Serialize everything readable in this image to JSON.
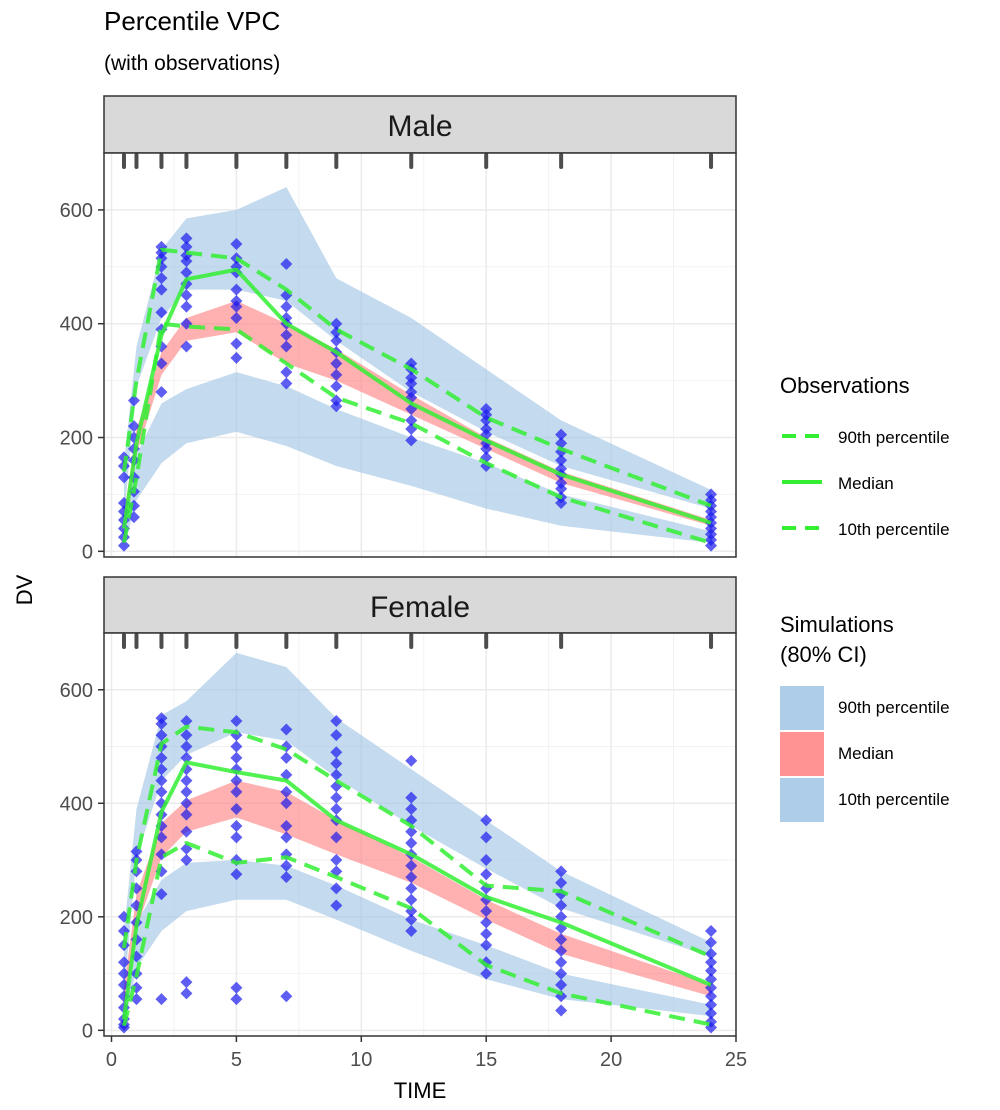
{
  "title": "Percentile VPC",
  "subtitle": "(with observations)",
  "chart_data": {
    "type": "line",
    "xlabel": "TIME",
    "ylabel": "DV",
    "xlim": [
      -0.3,
      25
    ],
    "ylim": [
      -10,
      700
    ],
    "x_ticks": [
      0,
      5,
      10,
      15,
      20,
      25
    ],
    "y_ticks": [
      0,
      200,
      400,
      600
    ],
    "grid": true,
    "bin_marks": [
      0.5,
      1,
      2,
      3,
      5,
      7,
      9,
      12,
      15,
      18,
      24
    ],
    "colors": {
      "observed_line": "#33ee33",
      "points": "#1a1aee",
      "median_band": "#ff8080",
      "pct_band": "#9fc4e4",
      "strip_bg": "#d9d9d9"
    },
    "legend": {
      "placement": "right",
      "observations": {
        "title": "Observations",
        "items": [
          {
            "label": "90th percentile",
            "style": "dashed"
          },
          {
            "label": "Median",
            "style": "solid"
          },
          {
            "label": "10th percentile",
            "style": "dashed"
          }
        ]
      },
      "simulations": {
        "title_line1": "Simulations",
        "title_line2": "(80% CI)",
        "items": [
          {
            "label": "90th percentile",
            "color": "#9fc4e4"
          },
          {
            "label": "Median",
            "color": "#ff8080"
          },
          {
            "label": "10th percentile",
            "color": "#9fc4e4"
          }
        ]
      }
    },
    "panels": [
      {
        "label": "Male",
        "x": [
          0.5,
          1,
          2,
          3,
          5,
          7,
          9,
          12,
          15,
          18,
          24
        ],
        "obs_p90": [
          140,
          300,
          530,
          525,
          515,
          460,
          390,
          320,
          235,
          180,
          80
        ],
        "obs_median": [
          40,
          190,
          380,
          478,
          495,
          400,
          350,
          260,
          195,
          135,
          50
        ],
        "obs_p10": [
          15,
          130,
          400,
          395,
          390,
          330,
          270,
          225,
          155,
          95,
          15
        ],
        "sim_p90_lo": [
          60,
          290,
          410,
          460,
          460,
          440,
          370,
          280,
          210,
          150,
          75
        ],
        "sim_p90_hi": [
          155,
          360,
          530,
          585,
          600,
          640,
          480,
          410,
          320,
          230,
          108
        ],
        "sim_med_lo": [
          35,
          170,
          310,
          370,
          385,
          330,
          300,
          240,
          180,
          120,
          45
        ],
        "sim_med_hi": [
          65,
          215,
          350,
          410,
          440,
          400,
          355,
          275,
          200,
          140,
          55
        ],
        "sim_p10_lo": [
          5,
          90,
          155,
          190,
          210,
          185,
          150,
          115,
          75,
          45,
          15
        ],
        "sim_p10_hi": [
          45,
          170,
          260,
          285,
          315,
          290,
          250,
          200,
          155,
          100,
          35
        ],
        "points": [
          [
            0.5,
            [
              10,
              25,
              40,
              55,
              70,
              85,
              130,
              150,
              165
            ]
          ],
          [
            0.9,
            [
              60,
              80,
              105,
              130,
              160,
              180,
              200,
              220,
              265
            ]
          ],
          [
            2,
            [
              280,
              330,
              360,
              390,
              420,
              460,
              480,
              500,
              515,
              525,
              535
            ]
          ],
          [
            3,
            [
              360,
              400,
              430,
              450,
              470,
              490,
              510,
              520,
              535,
              550
            ]
          ],
          [
            5,
            [
              340,
              365,
              410,
              430,
              440,
              460,
              490,
              500,
              515,
              540
            ]
          ],
          [
            7,
            [
              295,
              315,
              360,
              380,
              400,
              410,
              430,
              450,
              505
            ]
          ],
          [
            9,
            [
              255,
              265,
              290,
              310,
              330,
              350,
              370,
              385,
              400
            ]
          ],
          [
            12,
            [
              195,
              215,
              230,
              250,
              270,
              280,
              295,
              305,
              320,
              330
            ]
          ],
          [
            15,
            [
              150,
              165,
              180,
              190,
              205,
              215,
              230,
              240,
              250
            ]
          ],
          [
            18,
            [
              85,
              95,
              110,
              120,
              135,
              145,
              160,
              175,
              190,
              205
            ]
          ],
          [
            24,
            [
              10,
              20,
              30,
              40,
              50,
              60,
              70,
              80,
              90,
              100
            ]
          ]
        ]
      },
      {
        "label": "Female",
        "x": [
          0.5,
          1,
          2,
          3,
          5,
          7,
          9,
          12,
          15,
          18,
          24
        ],
        "obs_p90": [
          145,
          300,
          505,
          535,
          525,
          495,
          440,
          360,
          255,
          245,
          130
        ],
        "obs_median": [
          20,
          185,
          385,
          472,
          455,
          440,
          370,
          310,
          235,
          190,
          80
        ],
        "obs_p10": [
          8,
          95,
          305,
          330,
          295,
          305,
          270,
          215,
          115,
          65,
          10
        ],
        "sim_p90_lo": [
          65,
          305,
          440,
          485,
          525,
          510,
          445,
          360,
          285,
          215,
          130
        ],
        "sim_p90_hi": [
          175,
          390,
          555,
          580,
          665,
          640,
          550,
          460,
          370,
          280,
          155
        ],
        "sim_med_lo": [
          30,
          180,
          305,
          350,
          375,
          345,
          310,
          260,
          195,
          135,
          60
        ],
        "sim_med_hi": [
          75,
          240,
          365,
          405,
          440,
          420,
          370,
          305,
          230,
          170,
          80
        ],
        "sim_p10_lo": [
          5,
          110,
          175,
          210,
          230,
          230,
          195,
          140,
          90,
          55,
          25
        ],
        "sim_p10_hi": [
          50,
          190,
          265,
          295,
          300,
          290,
          255,
          195,
          150,
          100,
          45
        ],
        "points": [
          [
            0.5,
            [
              5,
              10,
              20,
              40,
              60,
              80,
              100,
              120,
              150,
              175,
              200
            ]
          ],
          [
            1,
            [
              55,
              75,
              100,
              130,
              160,
              190,
              220,
              250,
              280,
              300,
              315
            ]
          ],
          [
            2,
            [
              55,
              240,
              280,
              310,
              340,
              360,
              380,
              400,
              420,
              440,
              460,
              480,
              500,
              520,
              540,
              550
            ]
          ],
          [
            3,
            [
              65,
              85,
              300,
              320,
              350,
              380,
              400,
              420,
              440,
              460,
              480,
              500,
              520,
              545
            ]
          ],
          [
            5,
            [
              55,
              75,
              275,
              300,
              340,
              360,
              390,
              420,
              440,
              460,
              480,
              500,
              520,
              545
            ]
          ],
          [
            7,
            [
              60,
              270,
              290,
              310,
              340,
              360,
              400,
              420,
              450,
              480,
              500,
              530
            ]
          ],
          [
            9,
            [
              220,
              250,
              280,
              300,
              340,
              370,
              390,
              410,
              430,
              450,
              470,
              490,
              520,
              545
            ]
          ],
          [
            12,
            [
              175,
              195,
              210,
              230,
              250,
              270,
              290,
              310,
              330,
              350,
              370,
              390,
              410,
              475
            ]
          ],
          [
            15,
            [
              100,
              120,
              150,
              170,
              190,
              210,
              230,
              250,
              275,
              300,
              340,
              370
            ]
          ],
          [
            18,
            [
              35,
              60,
              80,
              100,
              120,
              140,
              160,
              180,
              200,
              220,
              240,
              260,
              280
            ]
          ],
          [
            24,
            [
              5,
              15,
              30,
              45,
              60,
              75,
              90,
              105,
              120,
              135,
              155,
              175
            ]
          ]
        ]
      }
    ]
  }
}
